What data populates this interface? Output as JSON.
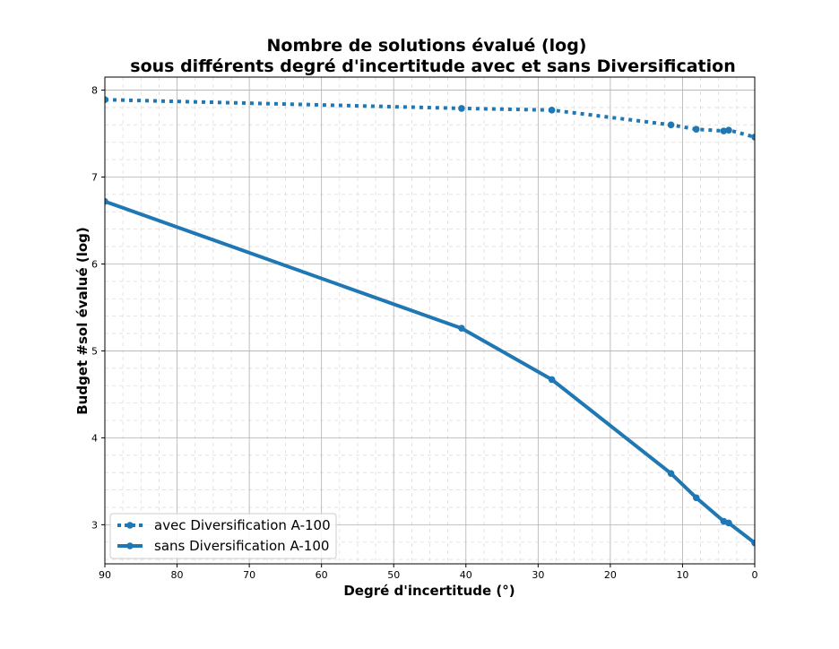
{
  "chart_data": {
    "type": "line",
    "title": "Nombre de solutions évalué (log)",
    "subtitle": "sous différents degré d'incertitude avec et sans Diversification",
    "xlabel": "Degré d'incertitude (°)",
    "ylabel": "Budget #sol évalué (log)",
    "x_ticks": [
      "90",
      "80",
      "70",
      "60",
      "50",
      "40",
      "30",
      "20",
      "10",
      "0"
    ],
    "y_ticks": [
      "3",
      "4",
      "5",
      "6",
      "7",
      "8"
    ],
    "xlim": [
      90,
      0
    ],
    "ylim": [
      2.55,
      8.15
    ],
    "x_inverted": true,
    "grid": true,
    "minor_grid": true,
    "legend_position": "lower-left",
    "series": [
      {
        "name": "avec Diversification A-100",
        "style": "dotted",
        "color": "#1f77b4",
        "x": [
          90,
          40.6,
          28.1,
          11.6,
          8.1,
          4.3,
          3.6,
          0
        ],
        "y": [
          7.89,
          7.79,
          7.77,
          7.6,
          7.55,
          7.53,
          7.54,
          7.46
        ]
      },
      {
        "name": "sans Diversification A-100",
        "style": "solid",
        "color": "#1f77b4",
        "x": [
          90,
          40.6,
          28.1,
          11.6,
          8.1,
          4.3,
          3.6,
          0
        ],
        "y": [
          6.72,
          5.26,
          4.67,
          3.59,
          3.31,
          3.04,
          3.02,
          2.79
        ]
      }
    ]
  }
}
